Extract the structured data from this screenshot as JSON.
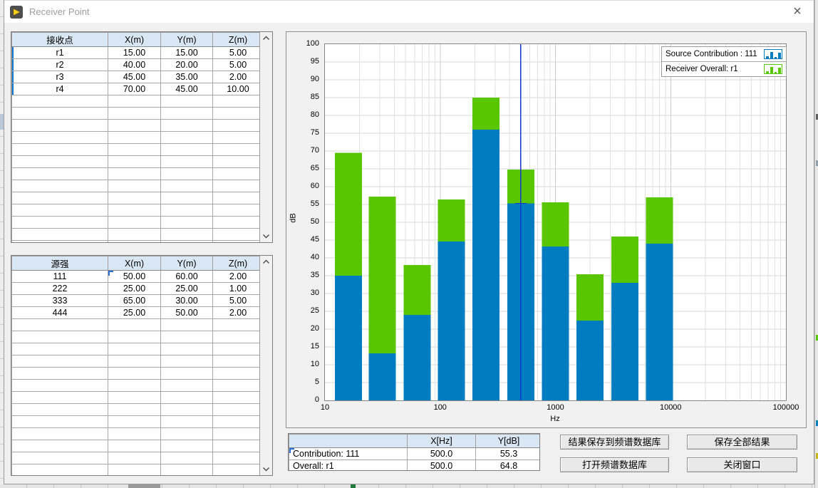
{
  "window": {
    "title": "Receiver Point",
    "close_glyph": "×"
  },
  "icons": {
    "app": "labview-run-icon",
    "close": "close-icon",
    "scroll_up": "chevron-up-icon",
    "scroll_down": "chevron-down-icon",
    "legend_glyph": "bar-plot-glyph-icon"
  },
  "colors": {
    "contribution_blue": "#007cc0",
    "overall_green": "#58c600",
    "cursor_blue": "#1238cc",
    "table_header_bg": "#d9e6f3"
  },
  "receiver_table": {
    "headers": [
      "接收点",
      "X(m)",
      "Y(m)",
      "Z(m)"
    ],
    "rows": [
      [
        "r1",
        "15.00",
        "15.00",
        "5.00"
      ],
      [
        "r2",
        "40.00",
        "20.00",
        "5.00"
      ],
      [
        "r3",
        "45.00",
        "35.00",
        "2.00"
      ],
      [
        "r4",
        "70.00",
        "45.00",
        "10.00"
      ]
    ]
  },
  "source_table": {
    "headers": [
      "源强",
      "X(m)",
      "Y(m)",
      "Z(m)"
    ],
    "rows": [
      [
        "111",
        "50.00",
        "60.00",
        "2.00"
      ],
      [
        "222",
        "25.00",
        "25.00",
        "1.00"
      ],
      [
        "333",
        "65.00",
        "30.00",
        "5.00"
      ],
      [
        "444",
        "25.00",
        "50.00",
        "2.00"
      ]
    ]
  },
  "chart_data": {
    "type": "bar",
    "stacked": true,
    "values_are_totals": true,
    "x_scale": "log",
    "xlabel": "Hz",
    "ylabel": "dB",
    "xlim": [
      10,
      100000
    ],
    "ylim": [
      0,
      100
    ],
    "y_tick_step": 5,
    "x_ticks": [
      "10",
      "100",
      "1000",
      "10000",
      "100000"
    ],
    "grid": true,
    "categories": [
      16,
      31.5,
      63,
      125,
      250,
      500,
      1000,
      2000,
      4000,
      8000
    ],
    "series": [
      {
        "name": "Source Contribution : 111",
        "color": "#007cc0",
        "values": [
          35,
          13.2,
          24,
          44.6,
          76,
          55.3,
          43.2,
          22.4,
          33,
          44
        ]
      },
      {
        "name": "Receiver Overall: r1",
        "color": "#58c600",
        "values": [
          69.5,
          57.2,
          38,
          56.4,
          85,
          64.8,
          55.6,
          35.4,
          46,
          57
        ]
      }
    ],
    "legend": [
      {
        "label": "Source Contribution : 111",
        "color": "#007cc0"
      },
      {
        "label": "Receiver Overall: r1",
        "color": "#58c600"
      }
    ],
    "legend_position": "top-right",
    "cursor": {
      "x": 500,
      "y": 55.3,
      "color": "#1238cc"
    }
  },
  "cursor_table": {
    "headers": [
      "",
      "X[Hz]",
      "Y[dB]"
    ],
    "rows": [
      [
        "Contribution: 111",
        "500.0",
        "55.3"
      ],
      [
        "Overall: r1",
        "500.0",
        "64.8"
      ]
    ]
  },
  "buttons": {
    "save_to_db": "结果保存到频谱数据库",
    "save_all": "保存全部结果",
    "open_db": "打开频谱数据库",
    "close_window": "关闭窗口"
  }
}
